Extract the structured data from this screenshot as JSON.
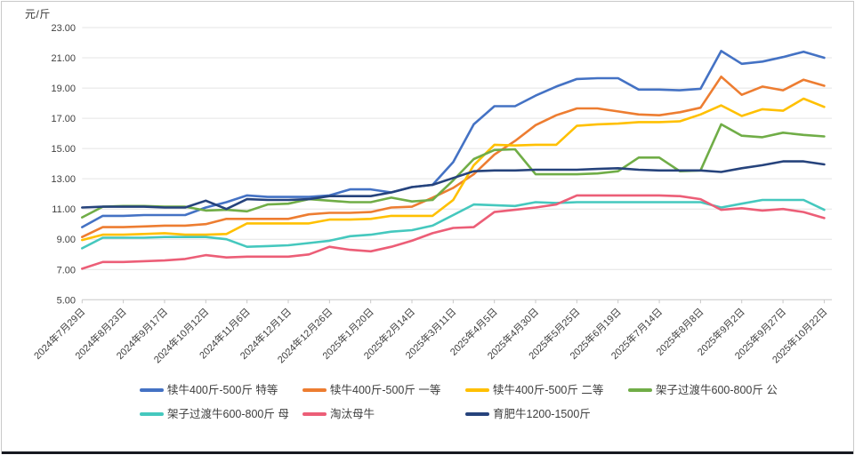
{
  "page": {
    "unit_label": "元/斤"
  },
  "chart_data": {
    "type": "line",
    "title": "",
    "xlabel": "",
    "ylabel": "元/斤",
    "ylim": [
      5,
      23
    ],
    "y_tick_step": 2,
    "y_tick_labels": [
      "23.00",
      "21.00",
      "19.00",
      "17.00",
      "15.00",
      "13.00",
      "11.00",
      "9.00",
      "7.00",
      "5.00"
    ],
    "grid": true,
    "legend_position": "bottom",
    "x_tick_labels": [
      "2024年7月29日",
      "2024年8月23日",
      "2024年9月17日",
      "2024年10月12日",
      "2024年11月6日",
      "2024年12月1日",
      "2024年12月26日",
      "2025年1月20日",
      "2025年2月14日",
      "2025年3月11日",
      "2025年4月5日",
      "2025年4月30日",
      "2025年5月25日",
      "2025年6月19日",
      "2025年7月14日",
      "2025年8月8日",
      "2025年9月2日",
      "2025年9月27日",
      "2025年10月22日"
    ],
    "samples_per_label_interval": 2,
    "series": [
      {
        "name": "犊牛400斤-500斤 特等",
        "color": "#4472C4",
        "values": [
          9.8,
          10.55,
          10.55,
          10.6,
          10.6,
          10.6,
          11.1,
          11.45,
          11.9,
          11.8,
          11.8,
          11.8,
          11.9,
          12.3,
          12.3,
          12.1,
          12.45,
          12.6,
          14.1,
          16.6,
          17.8,
          17.8,
          18.5,
          19.1,
          19.6,
          19.65,
          19.65,
          18.9,
          18.9,
          18.85,
          18.95,
          21.45,
          20.6,
          20.75,
          21.05,
          21.4,
          21.0
        ]
      },
      {
        "name": "犊牛400斤-500斤 一等",
        "color": "#ED7D31",
        "values": [
          9.15,
          9.8,
          9.8,
          9.85,
          9.9,
          9.9,
          10.0,
          10.35,
          10.35,
          10.35,
          10.35,
          10.65,
          10.75,
          10.75,
          10.8,
          11.1,
          11.15,
          11.75,
          12.4,
          13.3,
          14.6,
          15.5,
          16.55,
          17.2,
          17.65,
          17.65,
          17.45,
          17.25,
          17.2,
          17.4,
          17.7,
          19.75,
          18.55,
          19.1,
          18.85,
          19.55,
          19.15
        ]
      },
      {
        "name": "犊牛400斤-500斤 二等",
        "color": "#FFC000",
        "values": [
          8.95,
          9.3,
          9.3,
          9.35,
          9.4,
          9.3,
          9.3,
          9.35,
          10.05,
          10.05,
          10.05,
          10.05,
          10.3,
          10.3,
          10.35,
          10.55,
          10.55,
          10.55,
          11.6,
          13.9,
          15.25,
          15.2,
          15.25,
          15.25,
          16.5,
          16.6,
          16.65,
          16.75,
          16.75,
          16.8,
          17.25,
          17.85,
          17.15,
          17.6,
          17.5,
          18.3,
          17.75
        ]
      },
      {
        "name": "架子过渡牛600-800斤 公",
        "color": "#70AD47",
        "values": [
          10.45,
          11.15,
          11.2,
          11.2,
          11.15,
          11.15,
          10.9,
          10.95,
          10.85,
          11.3,
          11.35,
          11.65,
          11.55,
          11.45,
          11.45,
          11.75,
          11.5,
          11.6,
          12.9,
          14.3,
          14.9,
          14.95,
          13.3,
          13.3,
          13.3,
          13.35,
          13.5,
          14.4,
          14.4,
          13.5,
          13.55,
          16.6,
          15.85,
          15.75,
          16.05,
          15.9,
          15.8
        ]
      },
      {
        "name": "架子过渡牛600-800斤 母",
        "color": "#45C8BE",
        "values": [
          8.4,
          9.1,
          9.1,
          9.1,
          9.15,
          9.15,
          9.15,
          9.0,
          8.5,
          8.55,
          8.6,
          8.75,
          8.9,
          9.2,
          9.3,
          9.5,
          9.6,
          9.9,
          10.6,
          11.3,
          11.25,
          11.2,
          11.45,
          11.4,
          11.45,
          11.45,
          11.45,
          11.45,
          11.45,
          11.45,
          11.45,
          11.1,
          11.35,
          11.6,
          11.6,
          11.6,
          10.95
        ]
      },
      {
        "name": "淘汰母牛",
        "color": "#EC5E77",
        "values": [
          7.05,
          7.5,
          7.5,
          7.55,
          7.6,
          7.7,
          7.95,
          7.8,
          7.85,
          7.85,
          7.85,
          8.0,
          8.5,
          8.3,
          8.2,
          8.5,
          8.9,
          9.4,
          9.75,
          9.8,
          10.8,
          10.95,
          11.1,
          11.3,
          11.9,
          11.9,
          11.9,
          11.9,
          11.9,
          11.85,
          11.65,
          10.95,
          11.05,
          10.9,
          11.0,
          10.8,
          10.4
        ]
      },
      {
        "name": "育肥牛1200-1500斤",
        "color": "#26437C",
        "values": [
          11.1,
          11.15,
          11.15,
          11.15,
          11.1,
          11.1,
          11.55,
          11.0,
          11.65,
          11.6,
          11.6,
          11.65,
          11.85,
          11.85,
          11.85,
          12.1,
          12.45,
          12.6,
          13.05,
          13.5,
          13.55,
          13.55,
          13.6,
          13.6,
          13.6,
          13.65,
          13.7,
          13.6,
          13.55,
          13.55,
          13.55,
          13.45,
          13.7,
          13.9,
          14.15,
          14.15,
          13.95
        ]
      }
    ]
  }
}
